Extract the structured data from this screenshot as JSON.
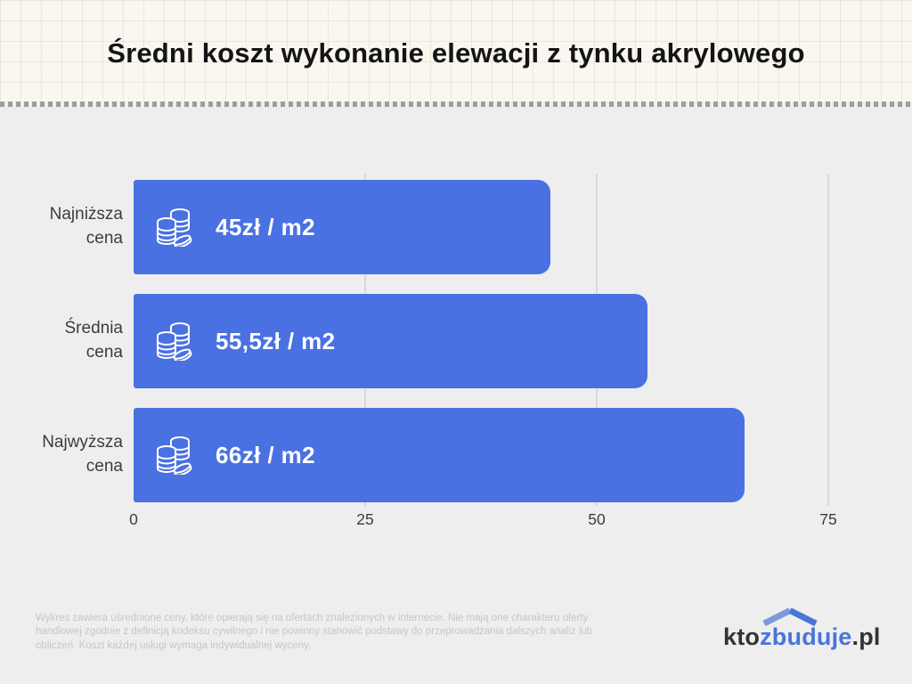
{
  "header": {
    "title": "Średni koszt wykonanie elewacji z tynku akrylowego"
  },
  "chart_data": {
    "type": "bar",
    "orientation": "horizontal",
    "title": "Średni koszt wykonanie elewacji z tynku akrylowego",
    "categories": [
      "Najniższa cena",
      "Średnia cena",
      "Najwyższa cena"
    ],
    "values": [
      45,
      55.5,
      66
    ],
    "value_labels": [
      "45zł / m2",
      "55,5zł / m2",
      "66zł / m2"
    ],
    "unit": "zł / m2",
    "x_ticks": [
      0,
      25,
      50,
      75
    ],
    "xlim": [
      0,
      79.8
    ],
    "grid": "vertical-lines",
    "legend": "none",
    "bar_color": "#4a71e2",
    "bar_text_color": "#ffffff",
    "bar_icon": "coins-icon"
  },
  "footer": {
    "disclaimer_lines": [
      "Wykres zawiera uśrednione ceny, które opierają się na ofertach znalezionych w internecie. Nie mają one charakteru oferty",
      "handlowej zgodnie z definicją kodeksu cywilnego i nie powinny stanowić podstawy do przeprowadzania dalszych analiz lub",
      "obliczeń. Koszt każdej usługi wymaga indywidualnej wyceny."
    ],
    "logo": {
      "prefix": "kto",
      "highlight": "zbuduje",
      "suffix": ".pl",
      "icon": "roof-icon",
      "accent_color": "#4a74d8",
      "dark_color": "#333333"
    }
  },
  "colors": {
    "header_background": "#faf7f0",
    "page_background": "#eeeeee",
    "gridline": "#d9d9d9",
    "divider_dash": "#9d9d9d",
    "label_text": "#3c3c3c",
    "disclaimer_text": "#c6c6c6"
  }
}
